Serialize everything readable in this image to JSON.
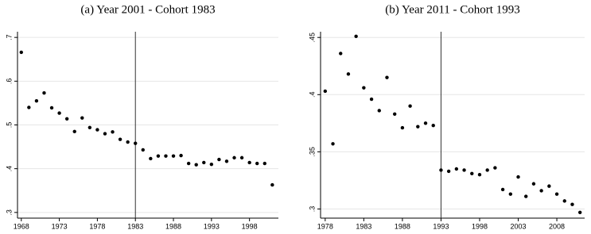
{
  "chart_data": [
    {
      "type": "scatter",
      "title": "(a) Year 2001 - Cohort 1983",
      "color": "#000000",
      "grid": true,
      "vline": 1983,
      "x": [
        1968,
        1969,
        1970,
        1971,
        1972,
        1973,
        1974,
        1975,
        1976,
        1977,
        1978,
        1979,
        1980,
        1981,
        1982,
        1983,
        1984,
        1985,
        1986,
        1987,
        1988,
        1989,
        1990,
        1991,
        1992,
        1993,
        1994,
        1995,
        1996,
        1997,
        1998,
        1999,
        2000,
        2001
      ],
      "values": [
        0.666,
        0.54,
        0.555,
        0.573,
        0.539,
        0.527,
        0.514,
        0.485,
        0.516,
        0.494,
        0.489,
        0.48,
        0.484,
        0.467,
        0.461,
        0.458,
        0.443,
        0.423,
        0.429,
        0.429,
        0.429,
        0.43,
        0.412,
        0.409,
        0.414,
        0.41,
        0.421,
        0.417,
        0.425,
        0.425,
        0.414,
        0.412,
        0.412,
        0.363
      ],
      "xlim": [
        1967.5,
        2001.8
      ],
      "ylim": [
        0.287,
        0.713
      ],
      "xticks": [
        1968,
        1973,
        1978,
        1983,
        1988,
        1993,
        1998
      ],
      "yticks": [
        {
          "value": 0.3,
          "label": ".3"
        },
        {
          "value": 0.4,
          "label": ".4"
        },
        {
          "value": 0.5,
          "label": ".5"
        },
        {
          "value": 0.6,
          "label": ".6"
        },
        {
          "value": 0.7,
          "label": ".7"
        }
      ]
    },
    {
      "type": "scatter",
      "title": "(b) Year 2011 - Cohort 1993",
      "color": "#000000",
      "grid": true,
      "vline": 1993,
      "x": [
        1978,
        1979,
        1980,
        1981,
        1982,
        1983,
        1984,
        1985,
        1986,
        1987,
        1988,
        1989,
        1990,
        1991,
        1992,
        1993,
        1994,
        1995,
        1996,
        1997,
        1998,
        1999,
        2000,
        2001,
        2002,
        2003,
        2004,
        2005,
        2006,
        2007,
        2008,
        2009,
        2010,
        2011
      ],
      "values": [
        0.403,
        0.357,
        0.436,
        0.418,
        0.451,
        0.406,
        0.396,
        0.386,
        0.415,
        0.383,
        0.371,
        0.39,
        0.372,
        0.375,
        0.373,
        0.334,
        0.333,
        0.335,
        0.334,
        0.331,
        0.33,
        0.334,
        0.336,
        0.317,
        0.313,
        0.328,
        0.311,
        0.322,
        0.316,
        0.32,
        0.313,
        0.307,
        0.304,
        0.297
      ],
      "xlim": [
        1977.4,
        2011.6
      ],
      "ylim": [
        0.292,
        0.455
      ],
      "xticks": [
        1978,
        1983,
        1988,
        1993,
        1998,
        2003,
        2008
      ],
      "yticks": [
        {
          "value": 0.3,
          "label": ".3"
        },
        {
          "value": 0.35,
          "label": ".35"
        },
        {
          "value": 0.4,
          "label": ".4"
        },
        {
          "value": 0.45,
          "label": ".45"
        }
      ]
    }
  ]
}
